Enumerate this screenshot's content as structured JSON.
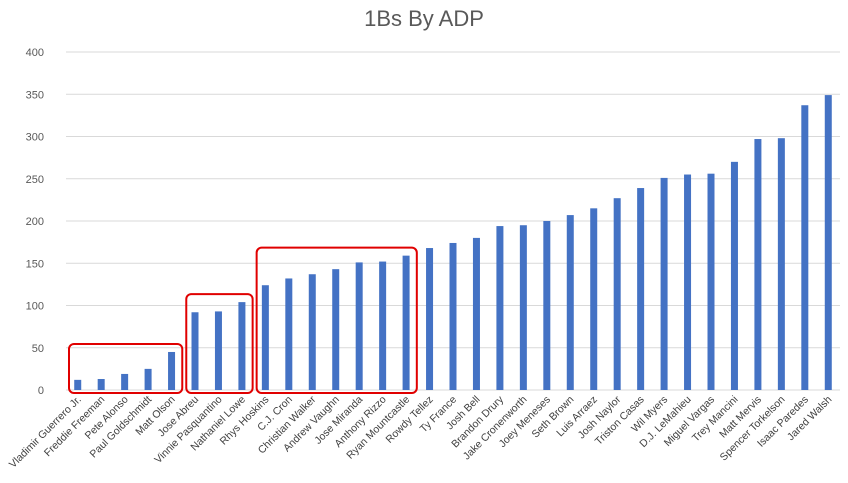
{
  "chart_data": {
    "type": "bar",
    "title": "1Bs By ADP",
    "xlabel": "",
    "ylabel": "",
    "ylim": [
      0,
      400
    ],
    "yticks": [
      0,
      50,
      100,
      150,
      200,
      250,
      300,
      350,
      400
    ],
    "grid": true,
    "bar_color": "#4472C4",
    "highlight_color": "#E00000",
    "categories": [
      "Vladimir Guerrero Jr.",
      "Freddie Freeman",
      "Pete Alonso",
      "Paul Goldschmidt",
      "Matt Olson",
      "Jose Abreu",
      "Vinnie Pasquantino",
      "Nathaniel Lowe",
      "Rhys Hoskins",
      "C.J. Cron",
      "Christian Walker",
      "Andrew Vaughn",
      "Jose Miranda",
      "Anthony Rizzo",
      "Ryan Mountcastle",
      "Rowdy Tellez",
      "Ty France",
      "Josh Bell",
      "Brandon Drury",
      "Jake Cronenworth",
      "Joey Meneses",
      "Seth Brown",
      "Luis Arraez",
      "Josh Naylor",
      "Triston Casas",
      "Wil Myers",
      "D.J. LeMahieu",
      "Miguel Vargas",
      "Trey Mancini",
      "Matt Mervis",
      "Spencer Torkelson",
      "Isaac Paredes",
      "Jared Walsh"
    ],
    "values": [
      12,
      13,
      19,
      25,
      45,
      92,
      93,
      104,
      124,
      132,
      137,
      143,
      151,
      152,
      159,
      168,
      174,
      180,
      194,
      195,
      200,
      207,
      215,
      227,
      239,
      251,
      255,
      256,
      270,
      297,
      298,
      337,
      349
    ],
    "highlight_groups": [
      [
        0,
        4
      ],
      [
        5,
        7
      ],
      [
        8,
        14
      ]
    ]
  }
}
